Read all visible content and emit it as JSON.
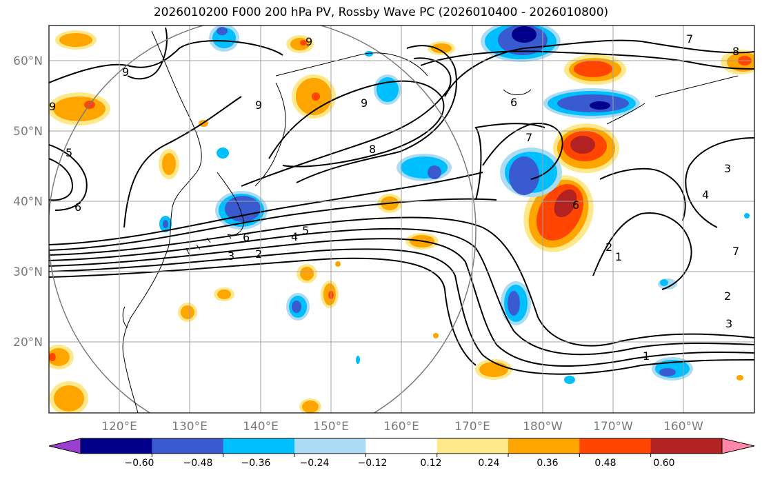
{
  "title": "2026010200 F000 200 hPa PV, Rossby Wave PC (2026010400 - 2026010800)",
  "map": {
    "lon_labels": [
      "120°E",
      "130°E",
      "140°E",
      "150°E",
      "160°E",
      "170°E",
      "180°W",
      "170°W",
      "160°W"
    ],
    "lat_labels": [
      "60°N",
      "50°N",
      "40°N",
      "30°N",
      "20°N"
    ],
    "contour_labels": [
      "9",
      "9",
      "9",
      "9",
      "9",
      "8",
      "7",
      "7",
      "6",
      "6",
      "6",
      "6",
      "5",
      "5",
      "4",
      "4",
      "3",
      "3",
      "3",
      "2",
      "2",
      "2",
      "1",
      "1",
      "7",
      "8"
    ]
  },
  "colorbar": {
    "tick_labels": [
      "−0.60",
      "−0.48",
      "−0.36",
      "−0.24",
      "−0.12",
      "0.12",
      "0.24",
      "0.36",
      "0.48",
      "0.60"
    ],
    "colors": [
      "#9b3fd0",
      "#00008b",
      "#3a5bd0",
      "#00bfff",
      "#aadcf5",
      "#ffffff",
      "#ffe88a",
      "#ffa500",
      "#ff4500",
      "#b22222",
      "#ff88aa"
    ]
  }
}
